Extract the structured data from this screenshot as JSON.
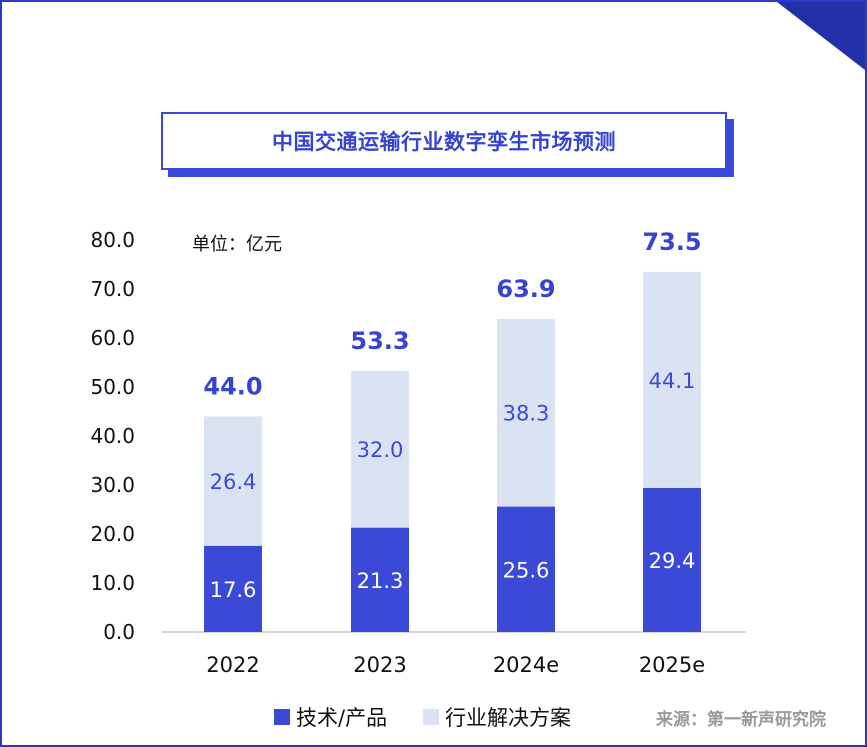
{
  "title": "中国交通运输行业数字孪生市场预测",
  "unit": "单位：亿元",
  "source": "来源：第一新声研究院",
  "colors": {
    "accent": "#3645d1",
    "tech_bar": "#3a4ad6",
    "solution_bar": "#dbe3f2",
    "total_label": "#3645d1",
    "source_text": "#9a9a9a"
  },
  "chart_data": {
    "type": "bar",
    "stacked": true,
    "categories": [
      "2022",
      "2023",
      "2024e",
      "2025e"
    ],
    "y_ticks": [
      "0.0",
      "10.0",
      "20.0",
      "30.0",
      "40.0",
      "50.0",
      "60.0",
      "70.0",
      "80.0"
    ],
    "ylim": [
      0,
      80
    ],
    "grid": false,
    "legend_position": "bottom",
    "series": [
      {
        "name": "技术/产品",
        "values": [
          17.6,
          21.3,
          25.6,
          29.4
        ],
        "labels": [
          "17.6",
          "21.3",
          "25.6",
          "29.4"
        ]
      },
      {
        "name": "行业解决方案",
        "values": [
          26.4,
          32.0,
          38.3,
          44.1
        ],
        "labels": [
          "26.4",
          "32.0",
          "38.3",
          "44.1"
        ]
      }
    ],
    "totals": [
      "44.0",
      "53.3",
      "63.9",
      "73.5"
    ]
  }
}
